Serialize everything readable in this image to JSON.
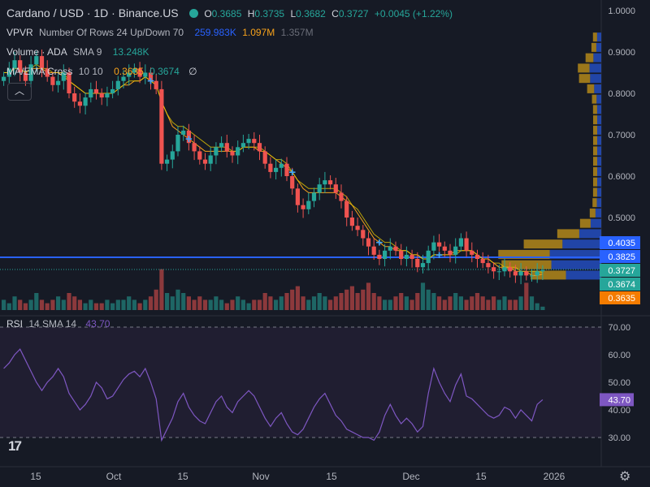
{
  "header": {
    "symbol": "Cardano / USD · 1D · Binance.US",
    "o_label": "O",
    "o": "0.3685",
    "h_label": "H",
    "h": "0.3735",
    "l_label": "L",
    "l": "0.3682",
    "c_label": "C",
    "c": "0.3727",
    "change": "+0.0045 (+1.22%)"
  },
  "indicators": {
    "vpvr": {
      "label": "VPVR",
      "params": "Number Of Rows 24 Up/Down 70",
      "v1": "259.983K",
      "v2": "1.097M",
      "v3": "1.357M"
    },
    "volume": {
      "label": "Volume · ADA",
      "params": "SMA 9",
      "value": "13.248K"
    },
    "ma": {
      "label": "MA/EMA Cross",
      "params": "10 10",
      "v1": "0.3635",
      "v2": "0.3674",
      "v3": "∅"
    },
    "rsi": {
      "label": "RSI",
      "params": "14 SMA 14",
      "value": "43.70"
    }
  },
  "colors": {
    "up": "#26a69a",
    "down": "#ef5350",
    "ma_orange": "#f7a21b",
    "ema_yellow": "#e6c700",
    "rsi_line": "#7e57c2",
    "vp_up": "#2962ff",
    "vp_down": "#d4a017",
    "hline": "#2962ff"
  },
  "price_axis": {
    "ticks": [
      "1.0000",
      "0.9000",
      "0.8000",
      "0.7000",
      "0.6000",
      "0.5000"
    ]
  },
  "price_badges": [
    {
      "text": "0.4035",
      "bg": "#2962ff"
    },
    {
      "text": "0.3825",
      "bg": "#2962ff"
    },
    {
      "text": "0.3727",
      "bg": "#26a69a"
    },
    {
      "text": "0.3674",
      "bg": "#26a69a"
    },
    {
      "text": "0.3635",
      "bg": "#f57c00"
    }
  ],
  "rsi_axis": {
    "ticks": [
      "70.00",
      "60.00",
      "50.00",
      "40.00",
      "30.00"
    ],
    "badge": "43.70"
  },
  "time_axis": {
    "labels": [
      "15",
      "Oct",
      "15",
      "Nov",
      "15",
      "Dec",
      "15",
      "2026"
    ]
  },
  "chart_data": [
    {
      "type": "candlestick",
      "title": "Cardano / USD · 1D · Binance.US",
      "ylim": [
        0.33,
        1.0
      ],
      "x_labels": [
        "15",
        "Oct",
        "15",
        "Nov",
        "15",
        "Dec",
        "15",
        "2026"
      ],
      "close": [
        0.84,
        0.86,
        0.88,
        0.85,
        0.83,
        0.87,
        0.89,
        0.86,
        0.84,
        0.82,
        0.83,
        0.85,
        0.8,
        0.78,
        0.77,
        0.79,
        0.81,
        0.8,
        0.79,
        0.8,
        0.81,
        0.83,
        0.84,
        0.85,
        0.86,
        0.84,
        0.85,
        0.83,
        0.81,
        0.63,
        0.64,
        0.66,
        0.7,
        0.71,
        0.68,
        0.66,
        0.64,
        0.63,
        0.65,
        0.67,
        0.68,
        0.66,
        0.65,
        0.67,
        0.68,
        0.69,
        0.68,
        0.66,
        0.63,
        0.61,
        0.62,
        0.63,
        0.6,
        0.57,
        0.53,
        0.52,
        0.54,
        0.56,
        0.58,
        0.59,
        0.58,
        0.56,
        0.54,
        0.5,
        0.48,
        0.47,
        0.45,
        0.43,
        0.41,
        0.4,
        0.42,
        0.43,
        0.42,
        0.4,
        0.41,
        0.4,
        0.38,
        0.39,
        0.42,
        0.44,
        0.43,
        0.42,
        0.41,
        0.43,
        0.45,
        0.42,
        0.41,
        0.4,
        0.39,
        0.38,
        0.37,
        0.37,
        0.38,
        0.37,
        0.36,
        0.37,
        0.36,
        0.36,
        0.37,
        0.3727
      ],
      "volume": [
        3,
        2,
        4,
        3,
        2,
        3,
        5,
        3,
        2,
        3,
        4,
        3,
        5,
        4,
        3,
        2,
        3,
        2,
        2,
        3,
        2,
        3,
        3,
        4,
        3,
        2,
        3,
        4,
        6,
        12,
        5,
        4,
        6,
        5,
        4,
        3,
        4,
        3,
        3,
        4,
        3,
        2,
        3,
        4,
        3,
        2,
        3,
        3,
        5,
        4,
        3,
        4,
        5,
        6,
        7,
        4,
        3,
        4,
        5,
        4,
        3,
        4,
        5,
        6,
        7,
        5,
        6,
        8,
        5,
        4,
        3,
        3,
        4,
        5,
        4,
        3,
        5,
        8,
        6,
        5,
        4,
        3,
        4,
        5,
        4,
        3,
        4,
        5,
        4,
        3,
        4,
        3,
        4,
        3,
        3,
        4,
        8,
        4,
        2,
        1
      ],
      "ma10": [
        0.85,
        0.85,
        0.86,
        0.86,
        0.85,
        0.86,
        0.86,
        0.86,
        0.85,
        0.85,
        0.85,
        0.84,
        0.83,
        0.82,
        0.81,
        0.8,
        0.8,
        0.8,
        0.8,
        0.8,
        0.8,
        0.81,
        0.82,
        0.82,
        0.83,
        0.83,
        0.84,
        0.83,
        0.82,
        0.78,
        0.75,
        0.72,
        0.71,
        0.7,
        0.69,
        0.68,
        0.67,
        0.66,
        0.66,
        0.66,
        0.66,
        0.66,
        0.66,
        0.66,
        0.67,
        0.67,
        0.67,
        0.66,
        0.66,
        0.65,
        0.64,
        0.63,
        0.62,
        0.61,
        0.59,
        0.57,
        0.56,
        0.56,
        0.56,
        0.56,
        0.56,
        0.56,
        0.55,
        0.54,
        0.53,
        0.51,
        0.49,
        0.47,
        0.45,
        0.44,
        0.43,
        0.43,
        0.42,
        0.42,
        0.42,
        0.41,
        0.41,
        0.4,
        0.4,
        0.41,
        0.41,
        0.41,
        0.41,
        0.42,
        0.42,
        0.42,
        0.42,
        0.41,
        0.4,
        0.4,
        0.39,
        0.38,
        0.38,
        0.38,
        0.37,
        0.37,
        0.37,
        0.36,
        0.36,
        0.3635
      ],
      "ema10": [
        0.85,
        0.85,
        0.86,
        0.86,
        0.85,
        0.86,
        0.87,
        0.86,
        0.86,
        0.85,
        0.85,
        0.85,
        0.83,
        0.82,
        0.81,
        0.8,
        0.8,
        0.8,
        0.8,
        0.8,
        0.8,
        0.81,
        0.82,
        0.83,
        0.83,
        0.83,
        0.84,
        0.83,
        0.82,
        0.78,
        0.75,
        0.73,
        0.72,
        0.72,
        0.71,
        0.7,
        0.69,
        0.68,
        0.67,
        0.67,
        0.67,
        0.67,
        0.66,
        0.66,
        0.67,
        0.67,
        0.67,
        0.67,
        0.66,
        0.65,
        0.64,
        0.64,
        0.63,
        0.61,
        0.59,
        0.58,
        0.57,
        0.57,
        0.57,
        0.57,
        0.57,
        0.57,
        0.56,
        0.55,
        0.53,
        0.52,
        0.5,
        0.48,
        0.46,
        0.45,
        0.44,
        0.44,
        0.43,
        0.42,
        0.42,
        0.41,
        0.41,
        0.4,
        0.4,
        0.41,
        0.41,
        0.41,
        0.41,
        0.41,
        0.42,
        0.42,
        0.42,
        0.41,
        0.4,
        0.4,
        0.39,
        0.39,
        0.38,
        0.38,
        0.38,
        0.37,
        0.37,
        0.37,
        0.37,
        0.3674
      ],
      "cross_markers": [
        27,
        34,
        53,
        69,
        80
      ]
    },
    {
      "type": "line",
      "title": "RSI 14 SMA 14",
      "ylim": [
        24,
        80
      ],
      "values": [
        55,
        57,
        60,
        62,
        58,
        54,
        50,
        47,
        50,
        52,
        55,
        52,
        46,
        43,
        40,
        42,
        45,
        50,
        48,
        44,
        45,
        48,
        51,
        53,
        54,
        52,
        55,
        50,
        44,
        29,
        33,
        37,
        43,
        46,
        41,
        38,
        36,
        35,
        39,
        43,
        45,
        41,
        39,
        43,
        45,
        47,
        45,
        41,
        37,
        34,
        37,
        39,
        35,
        32,
        31,
        33,
        37,
        41,
        44,
        46,
        42,
        38,
        36,
        33,
        32,
        31,
        30,
        30,
        29,
        32,
        38,
        42,
        38,
        35,
        37,
        35,
        32,
        34,
        46,
        55,
        50,
        46,
        43,
        49,
        53,
        45,
        44,
        42,
        40,
        38,
        37,
        38,
        41,
        40,
        37,
        40,
        38,
        36,
        42,
        43.7
      ],
      "levels": [
        70,
        30
      ]
    }
  ]
}
